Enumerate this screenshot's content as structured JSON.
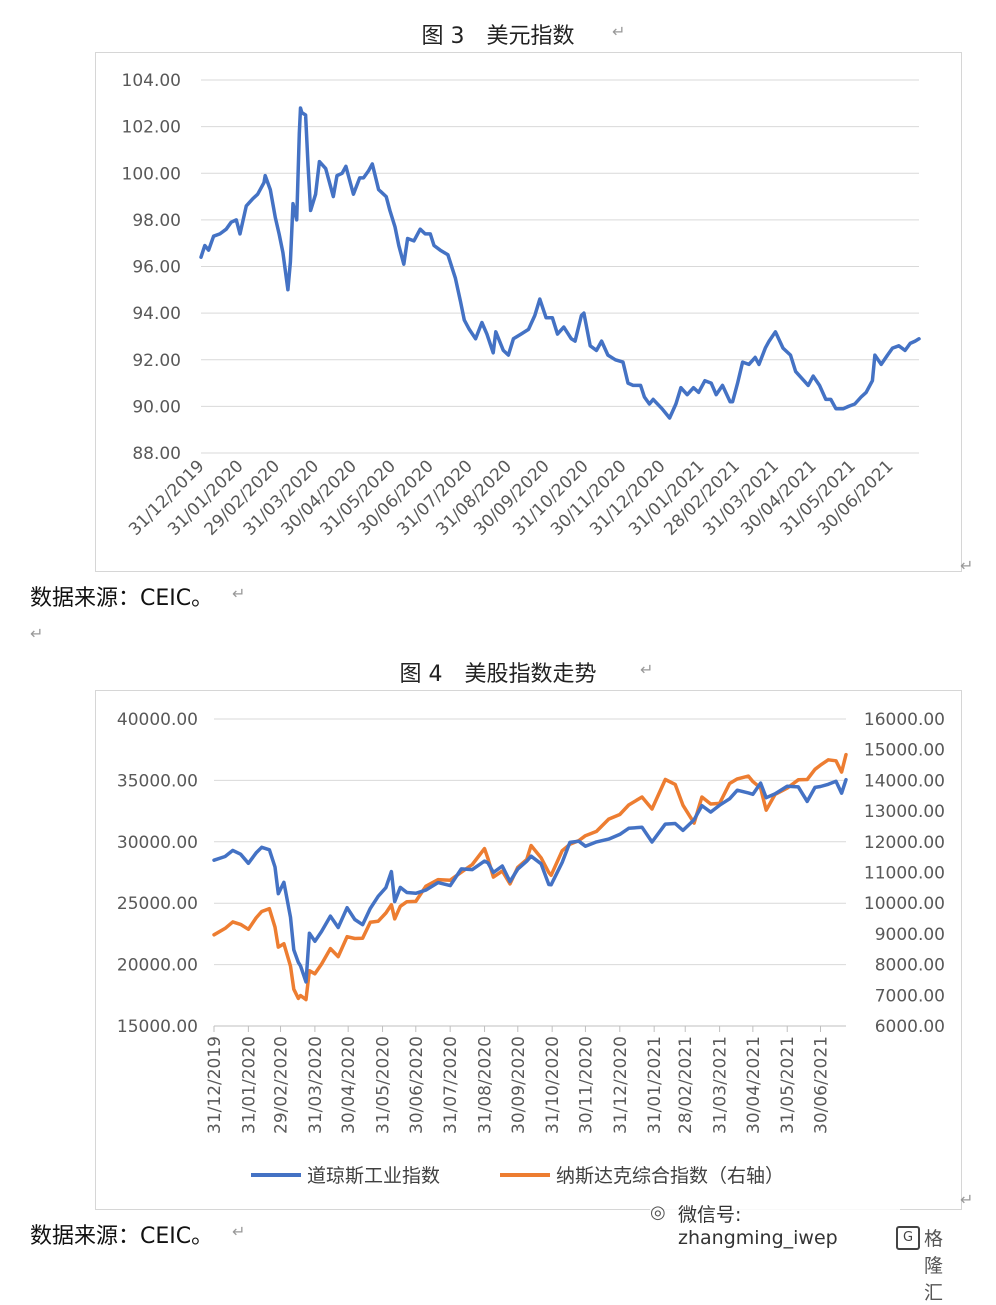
{
  "figure3": {
    "title": "图 3　美元指数",
    "source": "数据来源：CEIC。",
    "chart_data": {
      "type": "line",
      "title": "",
      "xlabel": "",
      "ylabel": "",
      "ylim": [
        88,
        104
      ],
      "y_ticks": [
        "104.00",
        "102.00",
        "100.00",
        "98.00",
        "96.00",
        "94.00",
        "92.00",
        "90.00",
        "88.00"
      ],
      "x_ticks": [
        "31/12/2019",
        "31/01/2020",
        "29/02/2020",
        "31/03/2020",
        "30/04/2020",
        "31/05/2020",
        "30/06/2020",
        "31/07/2020",
        "31/08/2020",
        "30/09/2020",
        "31/10/2020",
        "30/11/2020",
        "31/12/2020",
        "31/01/2021",
        "28/02/2021",
        "31/03/2021",
        "30/04/2021",
        "31/05/2021",
        "30/06/2021"
      ],
      "grid": true,
      "series": [
        {
          "color": "#4472C4",
          "x": [
            "2019-12-31",
            "2020-01-03",
            "2020-01-06",
            "2020-01-10",
            "2020-01-15",
            "2020-01-20",
            "2020-01-24",
            "2020-01-28",
            "2020-01-31",
            "2020-02-05",
            "2020-02-10",
            "2020-02-14",
            "2020-02-19",
            "2020-02-20",
            "2020-02-24",
            "2020-02-28",
            "2020-03-02",
            "2020-03-05",
            "2020-03-09",
            "2020-03-11",
            "2020-03-13",
            "2020-03-16",
            "2020-03-18",
            "2020-03-19",
            "2020-03-20",
            "2020-03-23",
            "2020-03-25",
            "2020-03-27",
            "2020-03-31",
            "2020-04-03",
            "2020-04-08",
            "2020-04-14",
            "2020-04-17",
            "2020-04-21",
            "2020-04-24",
            "2020-04-30",
            "2020-05-05",
            "2020-05-08",
            "2020-05-12",
            "2020-05-15",
            "2020-05-20",
            "2020-05-26",
            "2020-05-29",
            "2020-06-02",
            "2020-06-05",
            "2020-06-09",
            "2020-06-12",
            "2020-06-17",
            "2020-06-22",
            "2020-06-26",
            "2020-06-30",
            "2020-07-03",
            "2020-07-08",
            "2020-07-14",
            "2020-07-20",
            "2020-07-24",
            "2020-07-27",
            "2020-07-31",
            "2020-08-05",
            "2020-08-10",
            "2020-08-14",
            "2020-08-19",
            "2020-08-21",
            "2020-08-27",
            "2020-08-31",
            "2020-09-04",
            "2020-09-10",
            "2020-09-16",
            "2020-09-21",
            "2020-09-25",
            "2020-09-30",
            "2020-10-05",
            "2020-10-09",
            "2020-10-14",
            "2020-10-20",
            "2020-10-23",
            "2020-10-28",
            "2020-10-30",
            "2020-11-04",
            "2020-11-09",
            "2020-11-13",
            "2020-11-18",
            "2020-11-24",
            "2020-11-30",
            "2020-12-04",
            "2020-12-08",
            "2020-12-14",
            "2020-12-17",
            "2020-12-21",
            "2020-12-24",
            "2020-12-31",
            "2021-01-06",
            "2021-01-11",
            "2021-01-15",
            "2021-01-20",
            "2021-01-25",
            "2021-01-29",
            "2021-02-03",
            "2021-02-08",
            "2021-02-12",
            "2021-02-17",
            "2021-02-23",
            "2021-02-25",
            "2021-03-01",
            "2021-03-05",
            "2021-03-10",
            "2021-03-15",
            "2021-03-18",
            "2021-03-23",
            "2021-03-26",
            "2021-03-31",
            "2021-04-06",
            "2021-04-12",
            "2021-04-16",
            "2021-04-21",
            "2021-04-26",
            "2021-04-30",
            "2021-05-05",
            "2021-05-10",
            "2021-05-14",
            "2021-05-18",
            "2021-05-24",
            "2021-05-28",
            "2021-06-02",
            "2021-06-07",
            "2021-06-11",
            "2021-06-16",
            "2021-06-18",
            "2021-06-23",
            "2021-06-28",
            "2021-07-02",
            "2021-07-07",
            "2021-07-12",
            "2021-07-16",
            "2021-07-20",
            "2021-07-23"
          ],
          "y": [
            96.4,
            96.9,
            96.7,
            97.3,
            97.4,
            97.6,
            97.9,
            98.0,
            97.4,
            98.6,
            98.9,
            99.1,
            99.6,
            99.9,
            99.3,
            98.1,
            97.4,
            96.6,
            95.0,
            96.2,
            98.7,
            98.0,
            101.7,
            102.8,
            102.6,
            102.5,
            100.3,
            98.4,
            99.1,
            100.5,
            100.2,
            99.0,
            99.9,
            100.0,
            100.3,
            99.1,
            99.8,
            99.8,
            100.1,
            100.4,
            99.3,
            99.0,
            98.4,
            97.7,
            96.9,
            96.1,
            97.2,
            97.1,
            97.6,
            97.4,
            97.4,
            96.9,
            96.7,
            96.5,
            95.5,
            94.5,
            93.7,
            93.3,
            92.9,
            93.6,
            93.1,
            92.3,
            93.2,
            92.4,
            92.2,
            92.9,
            93.1,
            93.3,
            93.9,
            94.6,
            93.8,
            93.8,
            93.1,
            93.4,
            92.9,
            92.8,
            93.9,
            94.0,
            92.6,
            92.4,
            92.8,
            92.2,
            92.0,
            91.9,
            91.0,
            90.9,
            90.9,
            90.4,
            90.1,
            90.3,
            89.9,
            89.5,
            90.1,
            90.8,
            90.5,
            90.8,
            90.6,
            91.1,
            91.0,
            90.5,
            90.9,
            90.2,
            90.2,
            91.0,
            91.9,
            91.8,
            92.1,
            91.8,
            92.5,
            92.8,
            93.2,
            92.5,
            92.2,
            91.5,
            91.2,
            90.9,
            91.3,
            90.9,
            90.3,
            90.3,
            89.9,
            89.9,
            90.0,
            90.1,
            90.4,
            90.6,
            91.1,
            92.2,
            91.8,
            92.2,
            92.5,
            92.6,
            92.4,
            92.7,
            92.8,
            92.9
          ]
        }
      ]
    }
  },
  "figure4": {
    "title": "图 4　美股指数走势",
    "source": "数据来源：CEIC。",
    "chart_data": {
      "type": "line",
      "title": "",
      "xlabel": "",
      "ylabel": "",
      "ylim_left": [
        15000,
        40000
      ],
      "ylim_right": [
        6000,
        16000
      ],
      "y_left_ticks": [
        "40000.00",
        "35000.00",
        "30000.00",
        "25000.00",
        "20000.00",
        "15000.00"
      ],
      "y_right_ticks": [
        "16000.00",
        "15000.00",
        "14000.00",
        "13000.00",
        "12000.00",
        "11000.00",
        "10000.00",
        "9000.00",
        "8000.00",
        "7000.00",
        "6000.00"
      ],
      "x_ticks": [
        "31/12/2019",
        "31/01/2020",
        "29/02/2020",
        "31/03/2020",
        "30/04/2020",
        "31/05/2020",
        "30/06/2020",
        "31/07/2020",
        "31/08/2020",
        "30/09/2020",
        "31/10/2020",
        "30/11/2020",
        "31/12/2020",
        "31/01/2021",
        "28/02/2021",
        "31/03/2021",
        "30/04/2021",
        "31/05/2021",
        "30/06/2021"
      ],
      "grid": true,
      "legend_position": "bottom",
      "series": [
        {
          "name": "道琼斯工业指数",
          "axis": "left",
          "color": "#4472C4",
          "x": [
            "2019-12-31",
            "2020-01-10",
            "2020-01-17",
            "2020-01-24",
            "2020-01-31",
            "2020-02-07",
            "2020-02-12",
            "2020-02-19",
            "2020-02-24",
            "2020-02-27",
            "2020-03-03",
            "2020-03-09",
            "2020-03-12",
            "2020-03-16",
            "2020-03-18",
            "2020-03-23",
            "2020-03-26",
            "2020-03-31",
            "2020-04-06",
            "2020-04-14",
            "2020-04-21",
            "2020-04-29",
            "2020-05-06",
            "2020-05-13",
            "2020-05-20",
            "2020-05-27",
            "2020-06-03",
            "2020-06-08",
            "2020-06-11",
            "2020-06-16",
            "2020-06-22",
            "2020-06-30",
            "2020-07-09",
            "2020-07-20",
            "2020-07-31",
            "2020-08-10",
            "2020-08-20",
            "2020-08-31",
            "2020-09-03",
            "2020-09-08",
            "2020-09-16",
            "2020-09-23",
            "2020-09-30",
            "2020-10-08",
            "2020-10-12",
            "2020-10-21",
            "2020-10-28",
            "2020-10-30",
            "2020-11-09",
            "2020-11-16",
            "2020-11-24",
            "2020-11-30",
            "2020-12-10",
            "2020-12-21",
            "2020-12-31",
            "2021-01-08",
            "2021-01-20",
            "2021-01-29",
            "2021-02-10",
            "2021-02-19",
            "2021-02-26",
            "2021-03-08",
            "2021-03-15",
            "2021-03-23",
            "2021-03-31",
            "2021-04-09",
            "2021-04-16",
            "2021-04-26",
            "2021-04-30",
            "2021-05-07",
            "2021-05-12",
            "2021-05-20",
            "2021-05-31",
            "2021-06-10",
            "2021-06-18",
            "2021-06-25",
            "2021-06-30",
            "2021-07-07",
            "2021-07-14",
            "2021-07-19",
            "2021-07-23"
          ],
          "y": [
            28500,
            28800,
            29300,
            28990,
            28250,
            29100,
            29550,
            29350,
            27950,
            25770,
            26700,
            23850,
            21200,
            20190,
            19900,
            18590,
            22550,
            21900,
            22700,
            23950,
            23020,
            24630,
            23670,
            23250,
            24575,
            25550,
            26270,
            27570,
            25130,
            26290,
            25870,
            25810,
            26070,
            26680,
            26430,
            27790,
            27740,
            28430,
            28290,
            27500,
            28030,
            26760,
            27780,
            28420,
            28830,
            28210,
            26520,
            26500,
            28320,
            29950,
            30050,
            29640,
            29990,
            30220,
            30600,
            31100,
            31190,
            29980,
            31440,
            31490,
            30930,
            31800,
            32950,
            32420,
            32980,
            33500,
            34200,
            33980,
            33870,
            34780,
            33590,
            33900,
            34530,
            34470,
            33290,
            34430,
            34500,
            34680,
            34930,
            33960,
            35060
          ]
        },
        {
          "name": "纳斯达克综合指数（右轴）",
          "axis": "right",
          "color": "#ED7D31",
          "x": [
            "2019-12-31",
            "2020-01-10",
            "2020-01-17",
            "2020-01-24",
            "2020-01-31",
            "2020-02-07",
            "2020-02-12",
            "2020-02-19",
            "2020-02-24",
            "2020-02-27",
            "2020-03-03",
            "2020-03-09",
            "2020-03-12",
            "2020-03-16",
            "2020-03-18",
            "2020-03-23",
            "2020-03-26",
            "2020-03-31",
            "2020-04-06",
            "2020-04-14",
            "2020-04-21",
            "2020-04-29",
            "2020-05-06",
            "2020-05-13",
            "2020-05-20",
            "2020-05-27",
            "2020-06-03",
            "2020-06-08",
            "2020-06-11",
            "2020-06-16",
            "2020-06-22",
            "2020-06-30",
            "2020-07-09",
            "2020-07-20",
            "2020-07-31",
            "2020-08-10",
            "2020-08-20",
            "2020-08-31",
            "2020-09-03",
            "2020-09-08",
            "2020-09-16",
            "2020-09-23",
            "2020-09-30",
            "2020-10-08",
            "2020-10-12",
            "2020-10-21",
            "2020-10-28",
            "2020-10-30",
            "2020-11-09",
            "2020-11-16",
            "2020-11-24",
            "2020-11-30",
            "2020-12-10",
            "2020-12-21",
            "2020-12-31",
            "2021-01-08",
            "2021-01-20",
            "2021-01-29",
            "2021-02-10",
            "2021-02-19",
            "2021-02-26",
            "2021-03-08",
            "2021-03-15",
            "2021-03-23",
            "2021-03-31",
            "2021-04-09",
            "2021-04-16",
            "2021-04-26",
            "2021-04-30",
            "2021-05-07",
            "2021-05-12",
            "2021-05-20",
            "2021-05-31",
            "2021-06-10",
            "2021-06-18",
            "2021-06-25",
            "2021-06-30",
            "2021-07-07",
            "2021-07-14",
            "2021-07-19",
            "2021-07-23"
          ],
          "y": [
            8970,
            9180,
            9390,
            9310,
            9150,
            9520,
            9730,
            9820,
            9220,
            8570,
            8680,
            7950,
            7200,
            6900,
            6990,
            6860,
            7800,
            7700,
            8020,
            8520,
            8260,
            8910,
            8850,
            8860,
            9380,
            9410,
            9680,
            9950,
            9490,
            9900,
            10050,
            10060,
            10550,
            10770,
            10750,
            11010,
            11260,
            11780,
            11460,
            10850,
            11050,
            10630,
            11170,
            11420,
            11880,
            11480,
            11000,
            10910,
            11710,
            11920,
            12040,
            12200,
            12340,
            12740,
            12890,
            13200,
            13460,
            13070,
            14030,
            13870,
            13190,
            12610,
            13460,
            13230,
            13250,
            13900,
            14050,
            14140,
            13960,
            13750,
            13030,
            13540,
            13750,
            14020,
            14030,
            14360,
            14500,
            14670,
            14640,
            14270,
            14840
          ]
        }
      ]
    }
  },
  "watermark": {
    "wechat": "微信号: zhangming_iwep",
    "brand": "格隆汇"
  }
}
